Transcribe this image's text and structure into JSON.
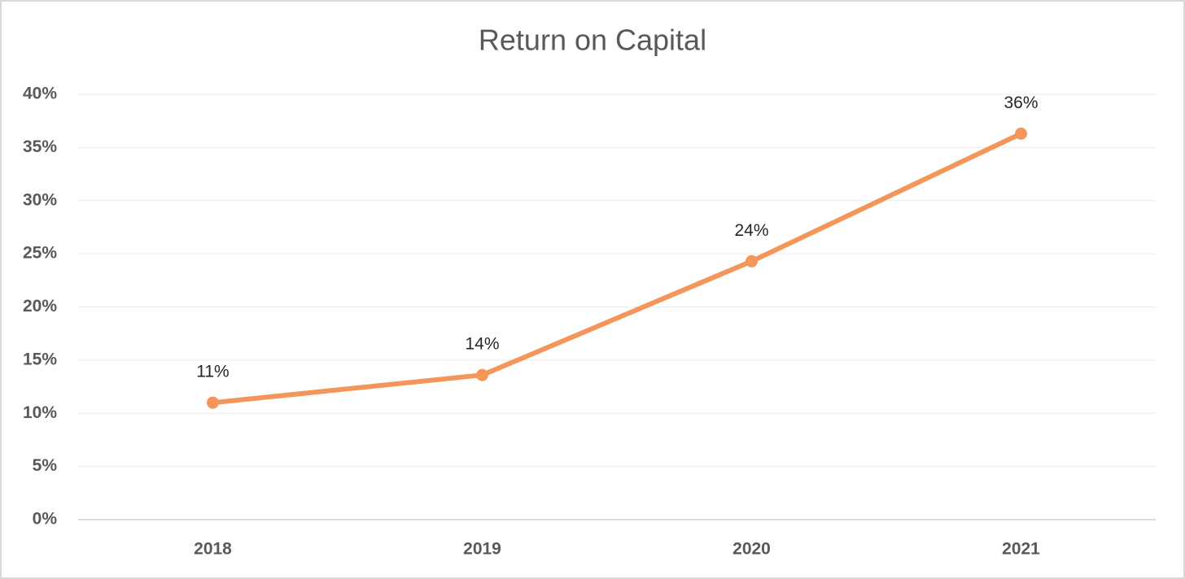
{
  "chart_data": {
    "type": "line",
    "title": "Return on Capital",
    "categories": [
      "2018",
      "2019",
      "2020",
      "2021"
    ],
    "series": [
      {
        "name": "Return on Capital",
        "color": "#f4955a",
        "values": [
          11.0,
          13.6,
          24.3,
          36.3
        ],
        "value_labels": [
          "11%",
          "14%",
          "24%",
          "36%"
        ]
      }
    ],
    "ylim": [
      0,
      40
    ],
    "yticks": [
      {
        "value": 0,
        "label": "0%"
      },
      {
        "value": 5,
        "label": "5%"
      },
      {
        "value": 10,
        "label": "10%"
      },
      {
        "value": 15,
        "label": "15%"
      },
      {
        "value": 20,
        "label": "20%"
      },
      {
        "value": 25,
        "label": "25%"
      },
      {
        "value": 30,
        "label": "30%"
      },
      {
        "value": 35,
        "label": "35%"
      },
      {
        "value": 40,
        "label": "40%"
      }
    ],
    "grid": true
  }
}
